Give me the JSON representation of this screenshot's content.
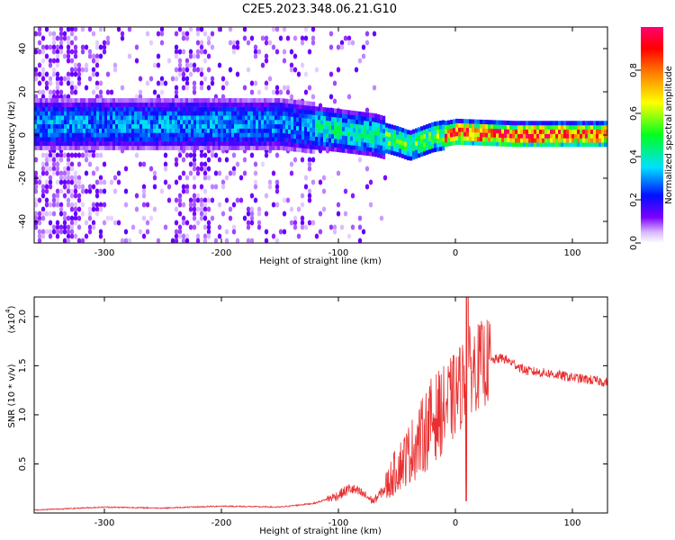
{
  "page_title": "C2E5.2023.348.06.21.G10",
  "chart_data": [
    {
      "type": "heatmap",
      "title": "C2E5.2023.348.06.21.G10",
      "xlabel": "Height of straight line (km)",
      "ylabel": "Frequency (Hz)",
      "xlim": [
        -360,
        130
      ],
      "ylim": [
        -50,
        50
      ],
      "xticks": [
        -300,
        -200,
        -100,
        0,
        100
      ],
      "yticks": [
        -40,
        -20,
        0,
        20,
        40
      ],
      "colorbar": {
        "label": "Normalized spectral amplitude",
        "range": [
          0,
          1
        ],
        "ticks": [
          "0.0",
          "0.2",
          "0.4",
          "0.6",
          "0.8"
        ],
        "colors": [
          "#ffffff",
          "#c8a0ff",
          "#6a00ff",
          "#0000ff",
          "#00d8ff",
          "#00ff00",
          "#ffff00",
          "#ff8000",
          "#ff0000",
          "#ff0080"
        ]
      },
      "ridge_center_hz": [
        {
          "x": -340,
          "y": 5
        },
        {
          "x": -300,
          "y": 5
        },
        {
          "x": -250,
          "y": 5
        },
        {
          "x": -200,
          "y": 5
        },
        {
          "x": -150,
          "y": 5
        },
        {
          "x": -100,
          "y": 2
        },
        {
          "x": -70,
          "y": 0
        },
        {
          "x": -50,
          "y": -3
        },
        {
          "x": -40,
          "y": -5
        },
        {
          "x": -20,
          "y": -1
        },
        {
          "x": 0,
          "y": 1
        },
        {
          "x": 50,
          "y": 0
        },
        {
          "x": 130,
          "y": 0
        }
      ]
    },
    {
      "type": "line",
      "xlabel": "Height of straight line (km)",
      "ylabel": "SNR (10 * v/v)",
      "scale_label": "(x10",
      "scale_exponent": "4",
      "scale_close": ")",
      "xlim": [
        -360,
        130
      ],
      "ylim": [
        0,
        2.2
      ],
      "xticks": [
        -300,
        -200,
        -100,
        0,
        100
      ],
      "yticks": [
        "0.5",
        "1.0",
        "1.5",
        "2.0"
      ],
      "series": [
        {
          "color": "#e83030",
          "x": [
            -360,
            -300,
            -250,
            -200,
            -150,
            -120,
            -100,
            -90,
            -80,
            -70,
            -60,
            -50,
            -40,
            -30,
            -20,
            -10,
            0,
            5,
            10,
            20,
            30,
            40,
            50,
            60,
            80,
            100,
            130
          ],
          "y": [
            0.03,
            0.06,
            0.05,
            0.07,
            0.06,
            0.1,
            0.18,
            0.25,
            0.2,
            0.12,
            0.25,
            0.45,
            0.6,
            0.75,
            0.95,
            1.05,
            1.2,
            1.3,
            1.45,
            1.5,
            1.55,
            1.58,
            1.52,
            1.45,
            1.42,
            1.38,
            1.33
          ]
        }
      ],
      "annotations": [
        {
          "x": 10,
          "y": 2.2,
          "label": "spike"
        },
        {
          "x": 10,
          "y": 0.12,
          "label": "dip"
        }
      ]
    }
  ]
}
